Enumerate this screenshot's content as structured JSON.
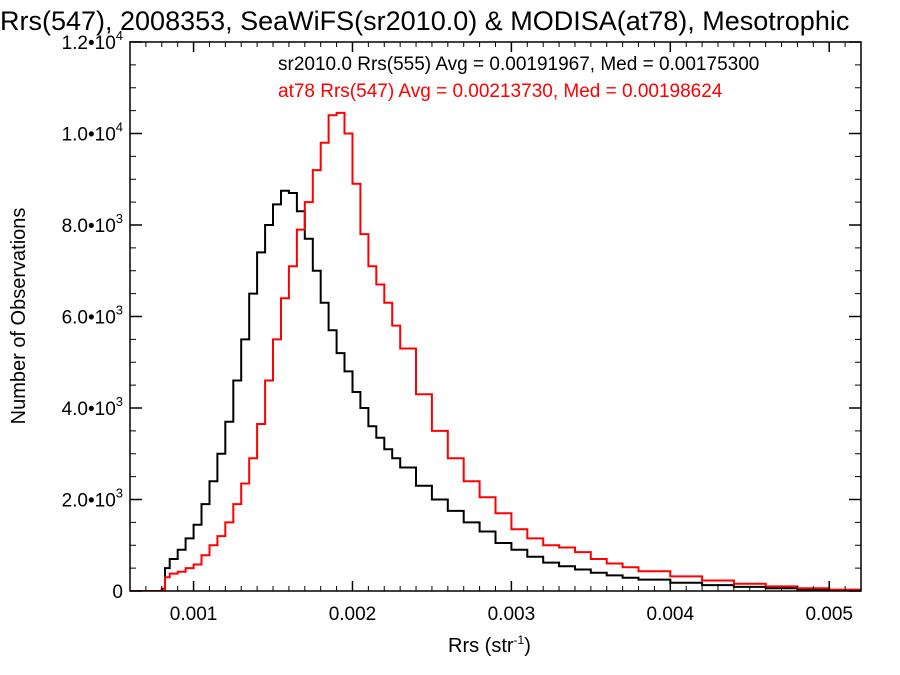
{
  "chart_data": {
    "type": "line",
    "title": "Rrs(547), 2008353, SeaWiFS(sr2010.0) & MODISA(at78), Mesotrophic",
    "xlabel": "Rrs (str",
    "xlabel_sup": "-1",
    "xlabel_end": ")",
    "ylabel": "Number of Observations",
    "xlim": [
      0.0006,
      0.0052
    ],
    "ylim": [
      0,
      12000
    ],
    "x_ticks": [
      {
        "value": 0.001,
        "label": "0.001"
      },
      {
        "value": 0.002,
        "label": "0.002"
      },
      {
        "value": 0.003,
        "label": "0.003"
      },
      {
        "value": 0.004,
        "label": "0.004"
      },
      {
        "value": 0.005,
        "label": "0.005"
      }
    ],
    "y_ticks": [
      {
        "value": 0,
        "mant": "0",
        "exp": ""
      },
      {
        "value": 2000,
        "mant": "2.0•10",
        "exp": "3"
      },
      {
        "value": 4000,
        "mant": "4.0•10",
        "exp": "3"
      },
      {
        "value": 6000,
        "mant": "6.0•10",
        "exp": "3"
      },
      {
        "value": 8000,
        "mant": "8.0•10",
        "exp": "3"
      },
      {
        "value": 10000,
        "mant": "1.0•10",
        "exp": "4"
      },
      {
        "value": 12000,
        "mant": "1.2•10",
        "exp": "4"
      }
    ],
    "legend_placement": "top-right",
    "series": [
      {
        "name": "sr2010.0 Rrs(555) Avg = 0.00191967, Med = 0.00175300",
        "color": "#000000",
        "x": [
          0.0006,
          0.00075,
          0.0008,
          0.00082,
          0.00085,
          0.0009,
          0.00095,
          0.001,
          0.00105,
          0.0011,
          0.00115,
          0.0012,
          0.00125,
          0.0013,
          0.00135,
          0.0014,
          0.00145,
          0.0015,
          0.00155,
          0.0016,
          0.00165,
          0.0017,
          0.00175,
          0.0018,
          0.00185,
          0.0019,
          0.00195,
          0.002,
          0.00205,
          0.0021,
          0.00215,
          0.0022,
          0.00225,
          0.0023,
          0.0024,
          0.0025,
          0.0026,
          0.0027,
          0.0028,
          0.0029,
          0.003,
          0.0031,
          0.0032,
          0.0033,
          0.0034,
          0.0035,
          0.0036,
          0.0037,
          0.0038,
          0.004,
          0.0042,
          0.0044,
          0.0046,
          0.0048,
          0.005,
          0.0052
        ],
        "y": [
          0,
          0,
          50,
          500,
          700,
          900,
          1150,
          1450,
          1900,
          2400,
          3000,
          3700,
          4600,
          5500,
          6500,
          7400,
          8000,
          8450,
          8750,
          8700,
          8300,
          7700,
          7000,
          6300,
          5700,
          5200,
          4800,
          4350,
          4000,
          3600,
          3350,
          3100,
          2900,
          2700,
          2300,
          2000,
          1750,
          1500,
          1300,
          1050,
          900,
          750,
          620,
          540,
          470,
          400,
          340,
          290,
          250,
          180,
          130,
          90,
          60,
          35,
          20,
          10
        ]
      },
      {
        "name": "at78 Rrs(547) Avg = 0.00213730, Med = 0.00198624",
        "color": "#ff0000",
        "x": [
          0.0006,
          0.00075,
          0.0008,
          0.00082,
          0.00085,
          0.0009,
          0.00095,
          0.001,
          0.00105,
          0.0011,
          0.00115,
          0.0012,
          0.00125,
          0.0013,
          0.00135,
          0.0014,
          0.00145,
          0.0015,
          0.00155,
          0.0016,
          0.00165,
          0.0017,
          0.00175,
          0.0018,
          0.00185,
          0.0019,
          0.00195,
          0.002,
          0.00205,
          0.0021,
          0.00215,
          0.0022,
          0.00225,
          0.0023,
          0.0024,
          0.0025,
          0.0026,
          0.0027,
          0.0028,
          0.0029,
          0.003,
          0.0031,
          0.0032,
          0.0033,
          0.0034,
          0.0035,
          0.0036,
          0.0037,
          0.0038,
          0.004,
          0.0042,
          0.0044,
          0.0046,
          0.0048,
          0.005,
          0.0052
        ],
        "y": [
          0,
          0,
          30,
          300,
          380,
          420,
          500,
          580,
          780,
          1000,
          1200,
          1500,
          1900,
          2350,
          2900,
          3650,
          4600,
          5500,
          6400,
          7100,
          7900,
          8500,
          9200,
          9800,
          10400,
          10450,
          10000,
          8900,
          7800,
          7100,
          6700,
          6300,
          5800,
          5300,
          4300,
          3500,
          2900,
          2400,
          2050,
          1700,
          1350,
          1150,
          1000,
          950,
          850,
          700,
          600,
          520,
          430,
          320,
          230,
          160,
          100,
          60,
          30,
          20
        ]
      }
    ]
  }
}
